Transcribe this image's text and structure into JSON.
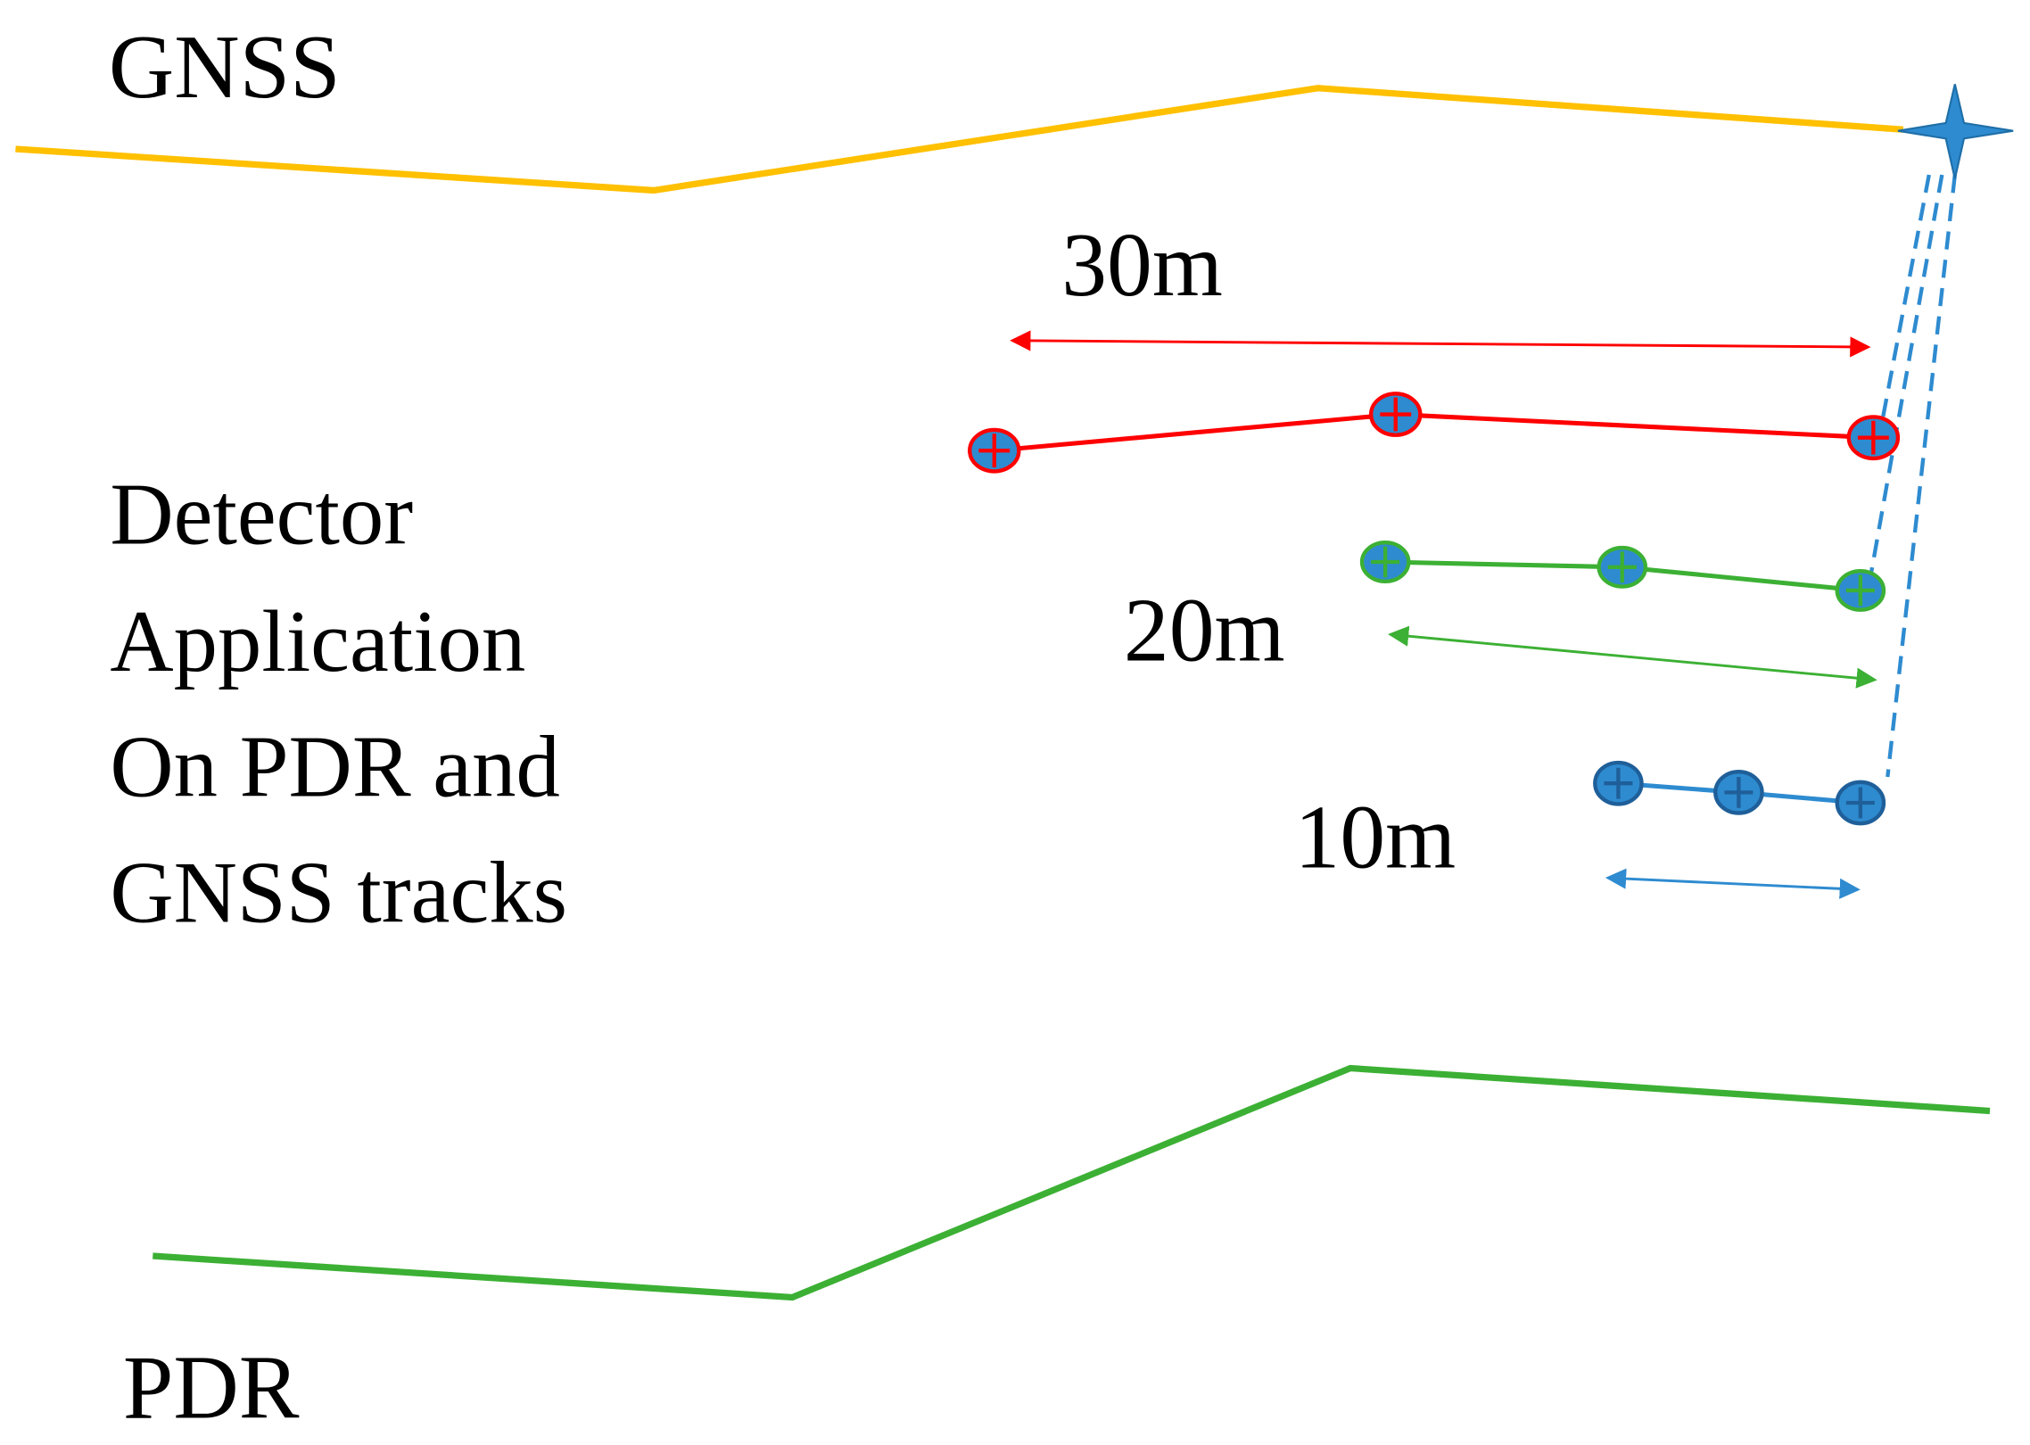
{
  "labels": {
    "gnss": "GNSS",
    "pdr": "PDR",
    "distance_30": "30m",
    "distance_20": "20m",
    "distance_10": "10m"
  },
  "description": {
    "lines": [
      "Detector",
      "Application",
      "On PDR and",
      "GNSS tracks"
    ]
  }
}
